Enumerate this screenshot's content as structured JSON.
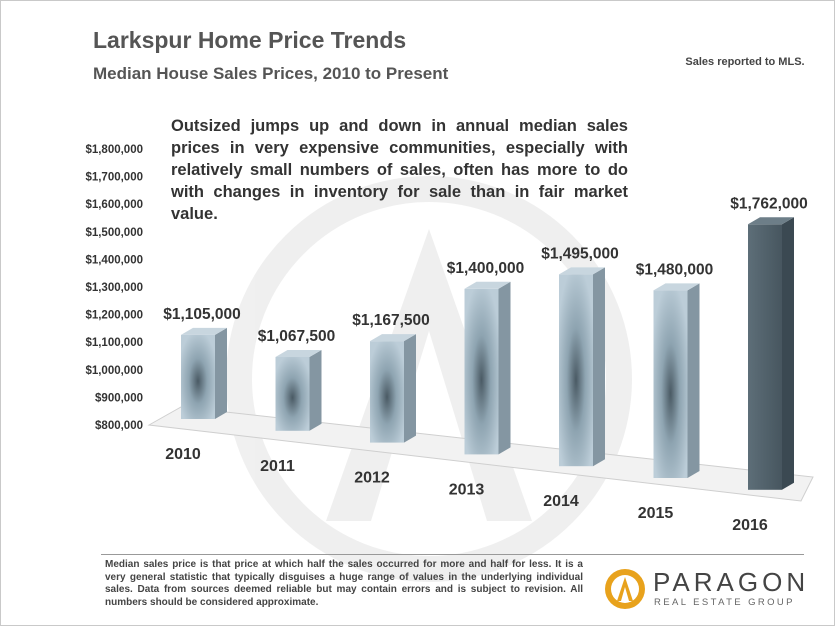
{
  "header": {
    "title": "Larkspur Home Price Trends",
    "subtitle": "Median House Sales Prices, 2010 to Present",
    "note": "Sales reported to MLS."
  },
  "annotation": "Outsized jumps up and down in annual median sales prices in very expensive communities, especially with relatively small numbers of sales,  often has more to do with changes in inventory for sale than in fair market value.",
  "footer": {
    "disclaimer": "Median sales price is that price at which half the sales occurred for more and half for less. It is a very general statistic that typically disguises a huge range of values in the underlying individual sales. Data from sources deemed reliable but may contain errors and is subject to revision. All numbers should be considered approximate.",
    "logo_name": "PARAGON",
    "logo_tagline": "REAL ESTATE GROUP"
  },
  "chart_data": {
    "type": "bar",
    "categories": [
      "2010",
      "2011",
      "2012",
      "2013",
      "2014",
      "2015",
      "2016"
    ],
    "values": [
      1105000,
      1067500,
      1167500,
      1400000,
      1495000,
      1480000,
      1762000
    ],
    "data_labels": [
      "$1,105,000",
      "$1,067,500",
      "$1,167,500",
      "$1,400,000",
      "$1,495,000",
      "$1,480,000",
      "$1,762,000"
    ],
    "ylim": [
      800000,
      1800000
    ],
    "y_ticks": [
      800000,
      900000,
      1000000,
      1100000,
      1200000,
      1300000,
      1400000,
      1500000,
      1600000,
      1700000,
      1800000
    ],
    "y_tick_labels": [
      "$800,000",
      "$900,000",
      "$1,000,000",
      "$1,100,000",
      "$1,200,000",
      "$1,300,000",
      "$1,400,000",
      "$1,500,000",
      "$1,600,000",
      "$1,700,000",
      "$1,800,000"
    ],
    "xlabel": "",
    "ylabel": "",
    "colors": {
      "bar": "#a9bfcc",
      "bar_highlight": "#4e5e68"
    },
    "style": "3d"
  }
}
